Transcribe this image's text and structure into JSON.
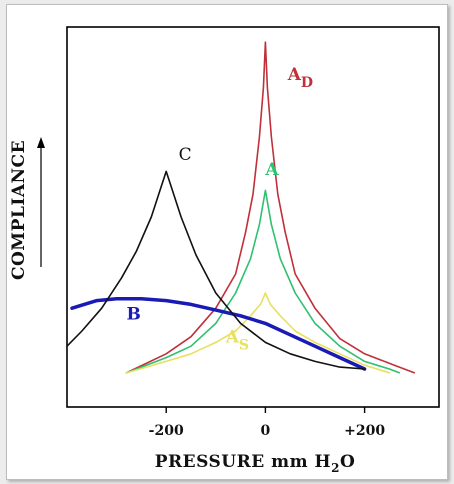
{
  "chart_data": {
    "type": "line",
    "title": "",
    "xlabel": {
      "main": "PRESSURE mm H",
      "sub": "2",
      "tail": "O"
    },
    "ylabel": "COMPLIANCE",
    "xlim": [
      -400,
      350
    ],
    "ylim": [
      0,
      100
    ],
    "x_ticks": [
      {
        "value": -200,
        "label": "-200"
      },
      {
        "value": 0,
        "label": "0"
      },
      {
        "value": 200,
        "label": "+200"
      }
    ],
    "grid": false,
    "legend": "inline",
    "series": [
      {
        "name": "A",
        "name_sub": "D",
        "color": "#c0303a",
        "label_at": [
          45,
          86
        ],
        "points": [
          [
            -280,
            9
          ],
          [
            -200,
            14
          ],
          [
            -150,
            18.5
          ],
          [
            -100,
            26
          ],
          [
            -60,
            35
          ],
          [
            -40,
            46
          ],
          [
            -25,
            56
          ],
          [
            -12,
            71
          ],
          [
            -4,
            84
          ],
          [
            0,
            96
          ],
          [
            4,
            84
          ],
          [
            12,
            71
          ],
          [
            25,
            56
          ],
          [
            40,
            46
          ],
          [
            60,
            35
          ],
          [
            100,
            26
          ],
          [
            150,
            18
          ],
          [
            200,
            14
          ],
          [
            260,
            11
          ],
          [
            300,
            9
          ]
        ]
      },
      {
        "name": "A",
        "name_sub": "",
        "color": "#2fc070",
        "label_at": [
          0,
          61
        ],
        "points": [
          [
            -280,
            9
          ],
          [
            -200,
            13
          ],
          [
            -150,
            16
          ],
          [
            -100,
            22
          ],
          [
            -60,
            30
          ],
          [
            -30,
            39
          ],
          [
            -12,
            48
          ],
          [
            0,
            57
          ],
          [
            12,
            48
          ],
          [
            30,
            39
          ],
          [
            60,
            30
          ],
          [
            100,
            22
          ],
          [
            150,
            16
          ],
          [
            200,
            12
          ],
          [
            250,
            10
          ],
          [
            270,
            9
          ]
        ]
      },
      {
        "name": "A",
        "name_sub": "S",
        "color": "#e8e060",
        "label_at": [
          -80,
          17
        ],
        "points": [
          [
            -280,
            9
          ],
          [
            -200,
            12
          ],
          [
            -150,
            14
          ],
          [
            -100,
            17
          ],
          [
            -60,
            20
          ],
          [
            -30,
            24
          ],
          [
            -10,
            27
          ],
          [
            0,
            30
          ],
          [
            10,
            27
          ],
          [
            30,
            24
          ],
          [
            60,
            20
          ],
          [
            100,
            17
          ],
          [
            150,
            14
          ],
          [
            200,
            11
          ],
          [
            250,
            9
          ]
        ]
      },
      {
        "name": "B",
        "name_sub": "",
        "color": "#1a1ab4",
        "label_at": [
          -280,
          23
        ],
        "points": [
          [
            -390,
            26
          ],
          [
            -340,
            28
          ],
          [
            -300,
            28.5
          ],
          [
            -250,
            28.5
          ],
          [
            -200,
            28
          ],
          [
            -150,
            27
          ],
          [
            -100,
            25.5
          ],
          [
            -50,
            24
          ],
          [
            0,
            22
          ],
          [
            50,
            19
          ],
          [
            100,
            16
          ],
          [
            150,
            13
          ],
          [
            200,
            10
          ]
        ]
      },
      {
        "name": "C",
        "name_sub": "",
        "color": "#111111",
        "label_at": [
          -175,
          65
        ],
        "points": [
          [
            -400,
            16
          ],
          [
            -370,
            20
          ],
          [
            -330,
            26
          ],
          [
            -290,
            34
          ],
          [
            -260,
            41
          ],
          [
            -230,
            50
          ],
          [
            -210,
            58
          ],
          [
            -200,
            62
          ],
          [
            -190,
            58
          ],
          [
            -170,
            50
          ],
          [
            -140,
            40
          ],
          [
            -100,
            30
          ],
          [
            -50,
            22
          ],
          [
            0,
            17
          ],
          [
            50,
            14
          ],
          [
            100,
            12
          ],
          [
            150,
            10.5
          ],
          [
            200,
            10
          ]
        ]
      }
    ]
  }
}
